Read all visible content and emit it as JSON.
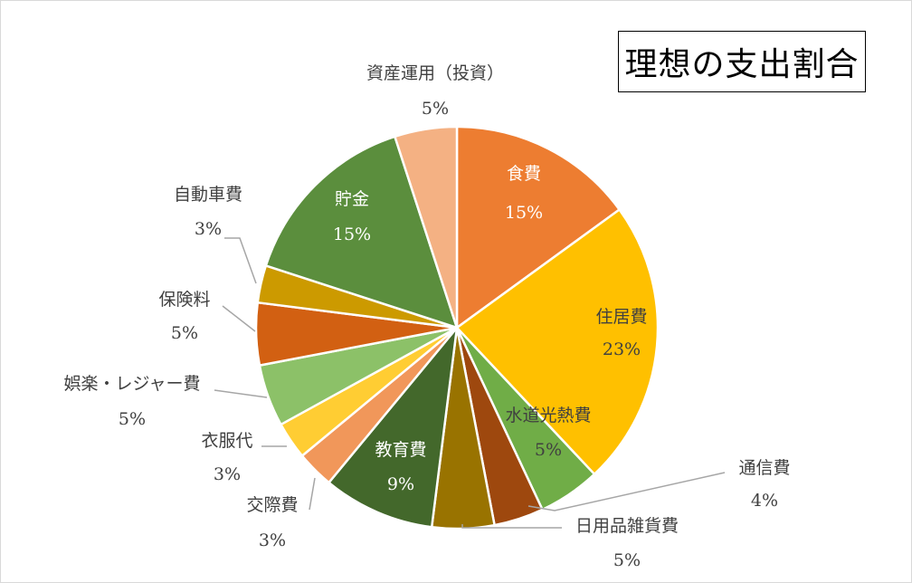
{
  "chart_data": {
    "type": "pie",
    "title": "理想の支出割合",
    "start_angle_deg": 0,
    "direction": "clockwise",
    "slices": [
      {
        "name": "食費",
        "value": 15,
        "label": "15%",
        "color": "#ED7D31",
        "label_pos": "inside"
      },
      {
        "name": "住居費",
        "value": 23,
        "label": "23%",
        "color": "#FFC000",
        "label_pos": "inside"
      },
      {
        "name": "水道光熱費",
        "value": 5,
        "label": "5%",
        "color": "#70AD47",
        "label_pos": "inside"
      },
      {
        "name": "通信費",
        "value": 4,
        "label": "4%",
        "color": "#9E480E",
        "label_pos": "outside"
      },
      {
        "name": "日用品雑貨費",
        "value": 5,
        "label": "5%",
        "color": "#997300",
        "label_pos": "outside"
      },
      {
        "name": "教育費",
        "value": 9,
        "label": "9%",
        "color": "#43682B",
        "label_pos": "inside"
      },
      {
        "name": "交際費",
        "value": 3,
        "label": "3%",
        "color": "#F1975A",
        "label_pos": "outside"
      },
      {
        "name": "衣服代",
        "value": 3,
        "label": "3%",
        "color": "#FFCD33",
        "label_pos": "outside"
      },
      {
        "name": "娯楽・レジャー費",
        "value": 5,
        "label": "5%",
        "color": "#8CC168",
        "label_pos": "outside"
      },
      {
        "name": "保険料",
        "value": 5,
        "label": "5%",
        "color": "#D26012",
        "label_pos": "outside"
      },
      {
        "name": "自動車費",
        "value": 3,
        "label": "3%",
        "color": "#CC9A00",
        "label_pos": "outside"
      },
      {
        "name": "貯金",
        "value": 15,
        "label": "15%",
        "color": "#5B8E3D",
        "label_pos": "inside"
      },
      {
        "name": "資産運用（投資）",
        "value": 5,
        "label": "5%",
        "color": "#F4B183",
        "label_pos": "outside"
      }
    ]
  }
}
